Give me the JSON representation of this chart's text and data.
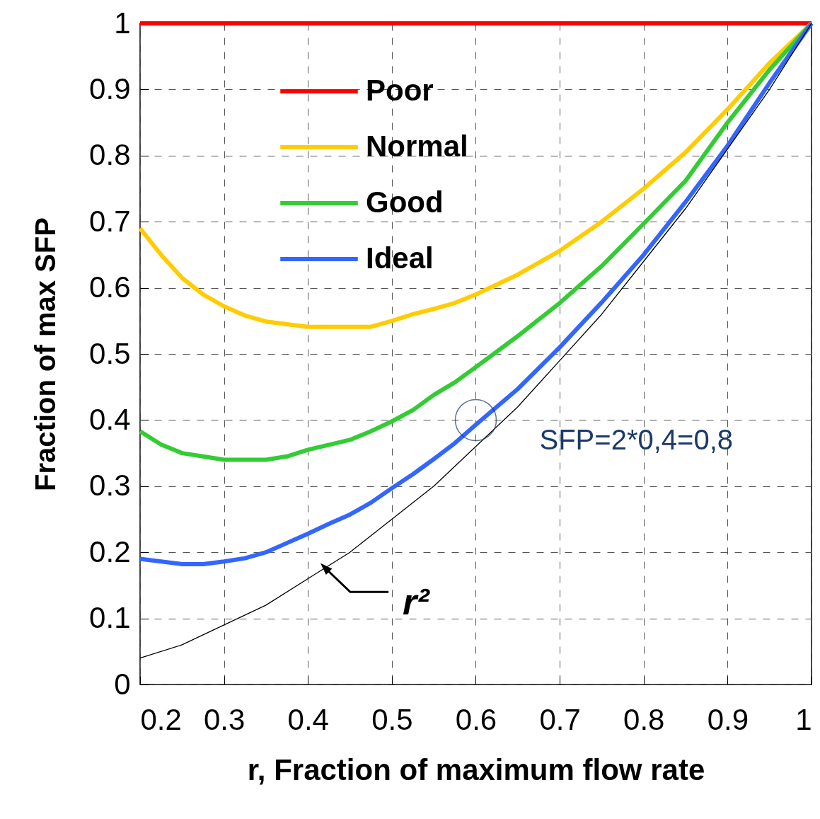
{
  "chart_data": {
    "type": "line",
    "xlabel": "r, Fraction of maximum flow rate",
    "ylabel": "Fraction of max SFP",
    "xlim": [
      0.2,
      1
    ],
    "ylim": [
      0,
      1
    ],
    "xticks": [
      0.2,
      0.3,
      0.4,
      0.5,
      0.6,
      0.7,
      0.8,
      0.9,
      1
    ],
    "yticks": [
      0,
      0.1,
      0.2,
      0.3,
      0.4,
      0.5,
      0.6,
      0.7,
      0.8,
      0.9,
      1
    ],
    "grid": true,
    "legend": "top left",
    "line_style": "solid",
    "marker": "none",
    "annotations": [
      {
        "text": "SFP=2*0,4=0,8",
        "x": 0.6,
        "y": 0.4
      },
      {
        "text": "r²",
        "x": 0.42,
        "y": 0.177
      }
    ],
    "series": [
      {
        "name": "Poor",
        "color": "#ff0000",
        "x": [
          0.2,
          1
        ],
        "values": [
          1,
          1
        ]
      },
      {
        "name": "Normal",
        "color": "#ffcc00",
        "x": [
          0.2,
          0.225,
          0.25,
          0.275,
          0.3,
          0.325,
          0.35,
          0.375,
          0.4,
          0.45,
          0.475,
          0.5,
          0.525,
          0.55,
          0.575,
          0.6,
          0.65,
          0.7,
          0.75,
          0.8,
          0.85,
          0.9,
          0.95,
          1
        ],
        "values": [
          0.69,
          0.65,
          0.615,
          0.59,
          0.572,
          0.558,
          0.549,
          0.545,
          0.541,
          0.541,
          0.541,
          0.55,
          0.56,
          0.568,
          0.577,
          0.59,
          0.62,
          0.656,
          0.7,
          0.75,
          0.805,
          0.87,
          0.94,
          1
        ]
      },
      {
        "name": "Good",
        "color": "#33cc33",
        "x": [
          0.2,
          0.225,
          0.25,
          0.275,
          0.3,
          0.35,
          0.375,
          0.4,
          0.45,
          0.475,
          0.5,
          0.525,
          0.55,
          0.575,
          0.6,
          0.65,
          0.7,
          0.75,
          0.8,
          0.85,
          0.9,
          0.95,
          1
        ],
        "values": [
          0.383,
          0.363,
          0.35,
          0.345,
          0.34,
          0.34,
          0.345,
          0.355,
          0.37,
          0.383,
          0.398,
          0.415,
          0.438,
          0.457,
          0.48,
          0.527,
          0.577,
          0.633,
          0.697,
          0.762,
          0.85,
          0.93,
          1
        ]
      },
      {
        "name": "Ideal",
        "color": "#3366ff",
        "x": [
          0.2,
          0.25,
          0.275,
          0.3,
          0.325,
          0.35,
          0.375,
          0.4,
          0.425,
          0.45,
          0.475,
          0.5,
          0.525,
          0.55,
          0.575,
          0.6,
          0.65,
          0.7,
          0.75,
          0.8,
          0.85,
          0.9,
          0.95,
          1
        ],
        "values": [
          0.19,
          0.182,
          0.182,
          0.186,
          0.191,
          0.2,
          0.214,
          0.228,
          0.243,
          0.257,
          0.275,
          0.297,
          0.318,
          0.341,
          0.365,
          0.393,
          0.447,
          0.51,
          0.578,
          0.65,
          0.73,
          0.815,
          0.91,
          1
        ]
      },
      {
        "color": "#000000",
        "x": [
          0.2,
          0.25,
          0.3,
          0.35,
          0.4,
          0.45,
          0.5,
          0.55,
          0.6,
          0.65,
          0.7,
          0.75,
          0.8,
          0.85,
          0.9,
          0.95,
          1
        ],
        "values": [
          0.04,
          0.06,
          0.09,
          0.12,
          0.16,
          0.2,
          0.25,
          0.3,
          0.36,
          0.42,
          0.49,
          0.56,
          0.64,
          0.72,
          0.81,
          0.9,
          1
        ]
      }
    ]
  }
}
